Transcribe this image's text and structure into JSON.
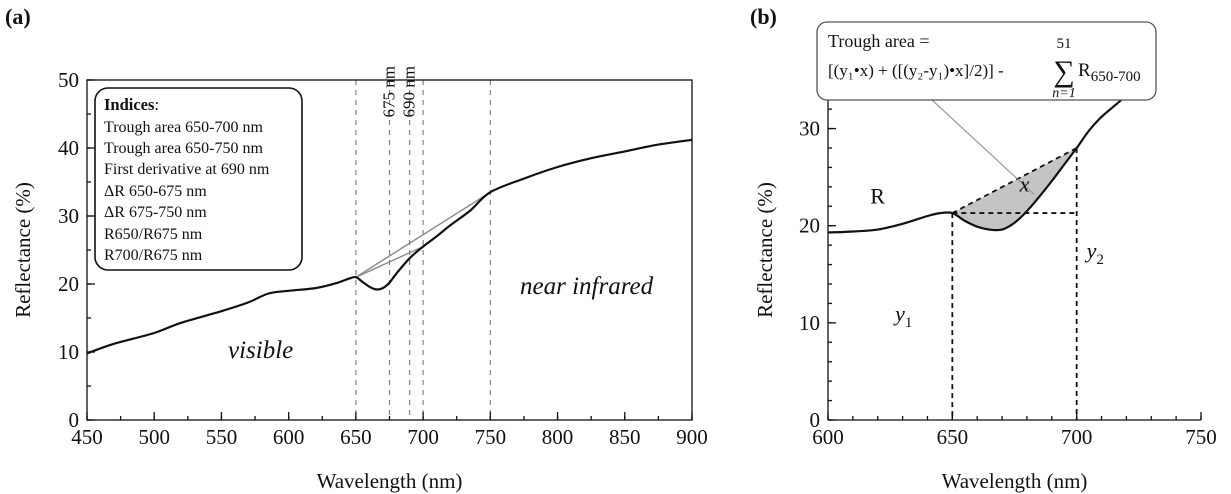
{
  "chart_data": [
    {
      "type": "line",
      "panel_label": "(a)",
      "xlabel": "Wavelength (nm)",
      "ylabel": "Reflectance (%)",
      "xlim": [
        450,
        900
      ],
      "ylim": [
        0,
        50
      ],
      "x_ticks": [
        450,
        500,
        550,
        600,
        650,
        700,
        750,
        800,
        850,
        900
      ],
      "y_ticks": [
        0,
        10,
        20,
        30,
        40,
        50
      ],
      "x_minor_step": 25,
      "y_minor_step": 5,
      "grid": false,
      "reference_lines_x": [
        650,
        675,
        690,
        700,
        750
      ],
      "reference_line_labels": [
        {
          "x": 675,
          "text": "675 nm"
        },
        {
          "x": 690,
          "text": "690 nm"
        }
      ],
      "chords": [
        {
          "x1": 650,
          "y1": 21,
          "x2": 700,
          "y2": 25.5
        },
        {
          "x1": 650,
          "y1": 21,
          "x2": 750,
          "y2": 33.5
        }
      ],
      "series": [
        {
          "x": [
            450,
            470,
            500,
            520,
            550,
            570,
            585,
            600,
            620,
            635,
            645,
            650,
            655,
            660,
            665,
            670,
            675,
            680,
            690,
            700,
            710,
            720,
            735,
            750,
            775,
            800,
            825,
            850,
            875,
            900
          ],
          "y": [
            9.8,
            11.2,
            12.8,
            14.3,
            16.0,
            17.3,
            18.6,
            19.0,
            19.4,
            20.1,
            20.8,
            21.0,
            20.3,
            19.6,
            19.2,
            19.4,
            20.2,
            21.5,
            23.8,
            25.5,
            27.0,
            28.6,
            30.8,
            33.5,
            35.5,
            37.2,
            38.5,
            39.5,
            40.5,
            41.2
          ]
        }
      ],
      "legend_box": {
        "heading": "Indices",
        "heading_suffix": ":",
        "items": [
          "Trough area 650-700 nm",
          "Trough area 650-750 nm",
          "First derivative at 690 nm",
          "ΔR 650-675 nm",
          "ΔR 675-750 nm",
          "R650/R675 nm",
          "R700/R675 nm"
        ]
      },
      "annotations": [
        "visible",
        "near infrared"
      ]
    },
    {
      "type": "line",
      "panel_label": "(b)",
      "xlabel": "Wavelength (nm)",
      "ylabel": "Reflectance (%)",
      "xlim": [
        600,
        750
      ],
      "ylim": [
        0,
        35
      ],
      "x_ticks": [
        600,
        650,
        700,
        750
      ],
      "y_ticks": [
        0,
        10,
        20,
        30
      ],
      "x_minor_step": 10,
      "y_minor_step": 2,
      "grid": false,
      "trough": {
        "x_start": 650,
        "x_end": 700,
        "y1": 21.3,
        "y2": 28
      },
      "series": [
        {
          "name": "R",
          "x": [
            600,
            610,
            620,
            630,
            640,
            645,
            650,
            655,
            660,
            665,
            670,
            675,
            680,
            685,
            690,
            695,
            700,
            705,
            710,
            715,
            720
          ],
          "y": [
            19.3,
            19.4,
            19.6,
            20.2,
            21.0,
            21.3,
            21.3,
            20.5,
            19.9,
            19.6,
            19.6,
            20.3,
            21.5,
            23.0,
            24.6,
            26.3,
            28.0,
            29.8,
            31.2,
            32.3,
            33.4
          ]
        }
      ],
      "annotations": {
        "curve_label": "R",
        "y1_label": "y",
        "y1_sub": "1",
        "y2_label": "y",
        "y2_sub": "2",
        "x_label": "x"
      },
      "formula_box": {
        "line1": "Trough area =",
        "line2_main": "[(y₁•x) + ([(y₂-y₁)•x]/2)] - ",
        "sum_symbol": "∑",
        "sum_upper": "51",
        "sum_lower": "n=1",
        "sum_term": "R",
        "sum_term_sub": "650-700"
      }
    }
  ]
}
